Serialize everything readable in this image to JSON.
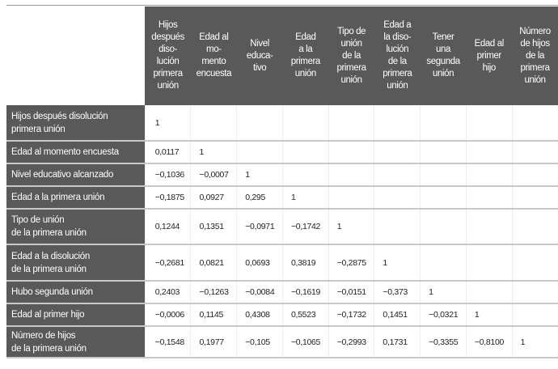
{
  "table": {
    "columns": [
      "Hijos\ndespués\ndiso-\nlución\nprimera\nunión",
      "Edad al\nmo-\nmento\nencuesta",
      "Nivel\neduca-\ntivo",
      "Edad\na la\nprimera\nunión",
      "Tipo de\nunión\nde la\nprimera\nunión",
      "Edad a\nla diso-\nlución\nde la\nprimera\nunión",
      "Tener\nuna\nsegunda\nunión",
      "Edad al\nprimer\nhijo",
      "Número\nde hijos\nde la\nprimera\nunión"
    ],
    "rows": [
      {
        "label": "Hijos después disolución\nprimera unión",
        "values": [
          "1"
        ]
      },
      {
        "label": "Edad al momento encuesta",
        "values": [
          "0,0117",
          "1"
        ]
      },
      {
        "label": "Nivel educativo alcanzado",
        "values": [
          "−0,1036",
          "−0,0007",
          "1"
        ]
      },
      {
        "label": "Edad a la primera unión",
        "values": [
          "−0,1875",
          "0,0927",
          "0,295",
          "1"
        ]
      },
      {
        "label": "Tipo de unión\nde la primera unión",
        "values": [
          "0,1244",
          "0,1351",
          "−0,0971",
          "−0,1742",
          "1"
        ]
      },
      {
        "label": "Edad a la disolución\nde la primera unión",
        "values": [
          "−0,2681",
          "0,0821",
          "0,0693",
          "0,3819",
          "−0,2875",
          "1"
        ]
      },
      {
        "label": "Hubo segunda unión",
        "values": [
          "0,2403",
          "−0,1263",
          "−0,0084",
          "−0,1619",
          "−0,0151",
          "−0,373",
          "1"
        ]
      },
      {
        "label": "Edad al primer hijo",
        "values": [
          "−0,0006",
          "0,1145",
          "0,4308",
          "0,5523",
          "−0,1732",
          "0,1451",
          "−0,0321",
          "1"
        ]
      },
      {
        "label": "Número de hijos\nde la primera unión",
        "values": [
          "−0,1548",
          "0,1977",
          "−0,105",
          "−0,1065",
          "−0,2993",
          "0,1731",
          "−0,3355",
          "−0,8100",
          "1"
        ]
      }
    ]
  },
  "colors": {
    "header_bg": "#595959",
    "header_text": "#ffffff",
    "separator": "#c8c8c8"
  }
}
